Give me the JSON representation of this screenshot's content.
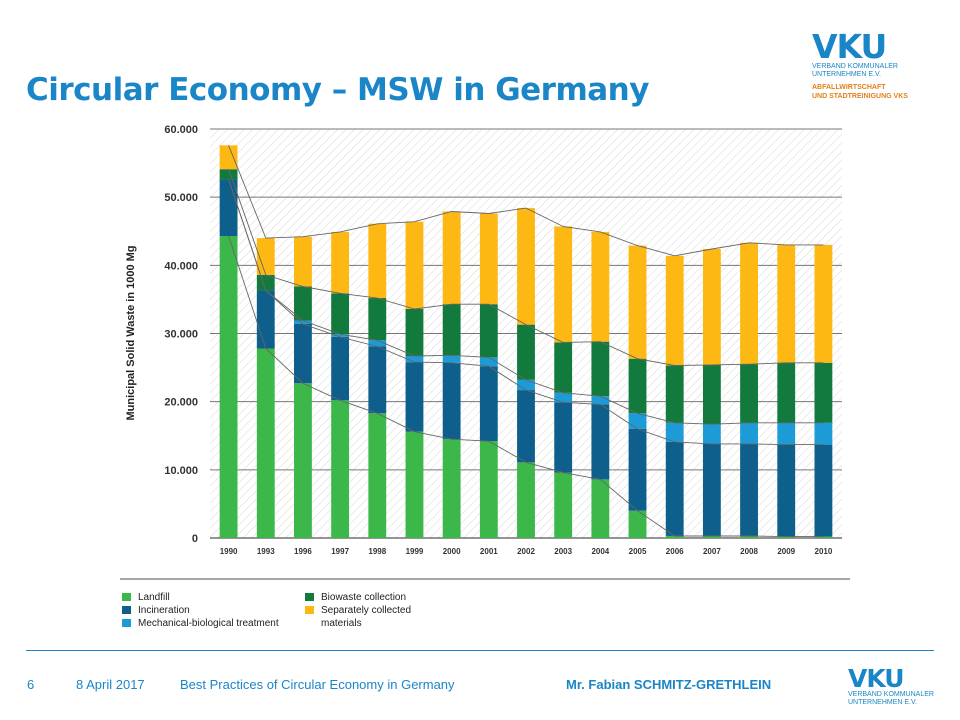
{
  "title": "Circular Economy – MSW in Germany",
  "logo": {
    "mark": "VKU",
    "line1": "Verband kommunaler",
    "line2": "Unternehmen e.V.",
    "line3": "Abfallwirtschaft",
    "line4": "und Stadtreinigung VKS",
    "bottom_line1": "Verband kommunaler",
    "bottom_line2": "Unternehmen e.V."
  },
  "footer": {
    "page_number": "6",
    "date": "8 April 2017",
    "presentation": "Best Practices of Circular Economy in Germany",
    "speaker": "Mr. Fabian SCHMITZ-GRETHLEIN"
  },
  "chart_data": {
    "type": "bar",
    "stacked": true,
    "ylabel": "Municipal Solid Waste in 1000 Mg",
    "ylim": [
      0,
      60000
    ],
    "yticks": [
      "0",
      "10.000",
      "20.000",
      "30.000",
      "40.000",
      "50.000",
      "60.000"
    ],
    "ytick_values": [
      0,
      10000,
      20000,
      30000,
      40000,
      50000,
      60000
    ],
    "grid": true,
    "legend_position": "bottom",
    "categories": [
      "1990",
      "1993",
      "1996",
      "1997",
      "1998",
      "1999",
      "2000",
      "2001",
      "2002",
      "2003",
      "2004",
      "2005",
      "2006",
      "2007",
      "2008",
      "2009",
      "2010"
    ],
    "series": [
      {
        "name": "Landfill",
        "color": "#3cb84a",
        "values": [
          44300,
          27800,
          22700,
          20200,
          18300,
          15600,
          14500,
          14200,
          11100,
          9600,
          8600,
          4000,
          300,
          300,
          300,
          200,
          200
        ]
      },
      {
        "name": "Incineration",
        "color": "#0f5f8c",
        "values": [
          8300,
          8500,
          8700,
          9300,
          9800,
          10200,
          11200,
          11000,
          10600,
          10300,
          11000,
          12000,
          13800,
          13500,
          13500,
          13500,
          13500
        ]
      },
      {
        "name": "Mechanical-biological treatment",
        "color": "#1d9bd7",
        "values": [
          0,
          0,
          500,
          400,
          900,
          900,
          1100,
          1300,
          1500,
          1400,
          1200,
          2300,
          2800,
          2900,
          3100,
          3200,
          3200
        ]
      },
      {
        "name": "Biowaste collection",
        "color": "#137a3e",
        "values": [
          1500,
          2300,
          5000,
          6000,
          6200,
          6900,
          7500,
          7800,
          8100,
          7400,
          8000,
          8000,
          8400,
          8700,
          8600,
          8800,
          8800
        ]
      },
      {
        "name": "Separately collected materials",
        "color": "#fdb813",
        "values": [
          3500,
          5400,
          7300,
          9000,
          10900,
          12800,
          13600,
          13300,
          17100,
          17000,
          16100,
          16600,
          16100,
          17000,
          17800,
          17300,
          17300
        ]
      }
    ],
    "legend": [
      {
        "label": "Landfill",
        "color": "#3cb84a"
      },
      {
        "label": "Incineration",
        "color": "#0f5f8c"
      },
      {
        "label": "Mechanical-biological treatment",
        "color": "#1d9bd7"
      },
      {
        "label": "Biowaste collection",
        "color": "#137a3e"
      },
      {
        "label": "Separately collected materials",
        "color": "#fdb813"
      }
    ]
  }
}
